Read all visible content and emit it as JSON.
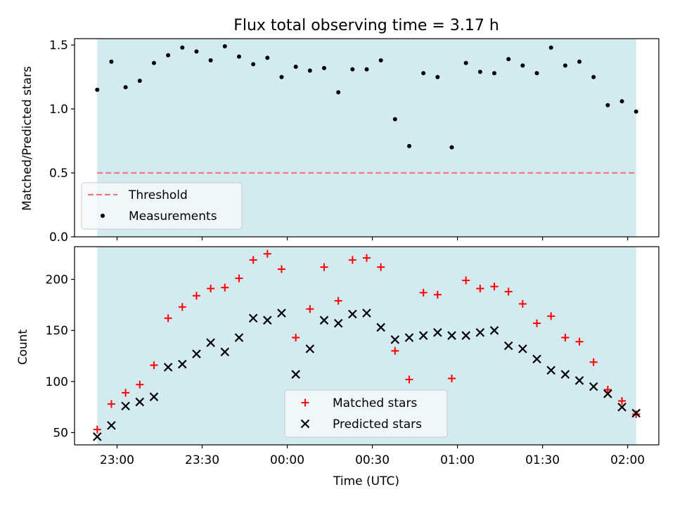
{
  "title": "Flux total observing time = 3.17 h",
  "colors": {
    "shade": "#d3eaf0",
    "threshold": "#ef7a7a",
    "measurement": "#000000",
    "matched": "#ff0000",
    "predicted": "#000000",
    "legend_bg": "#f4f9fb",
    "legend_border": "#cccccc"
  },
  "chart_data": [
    {
      "type": "scatter",
      "ylabel": "Matched/Predicted stars",
      "ylim": [
        0,
        1.55
      ],
      "yticks": [
        0,
        0.5,
        1.0,
        1.5
      ],
      "ytick_labels": [
        "0.0",
        "0.5",
        "1.0",
        "1.5"
      ],
      "threshold": 0.5,
      "legend": {
        "placement": "lower-left",
        "entries": [
          "Threshold",
          "Measurements"
        ]
      },
      "shaded_span": [
        "22:53",
        "02:03"
      ],
      "series": [
        {
          "name": "Measurements",
          "x": [
            "22:53",
            "22:58",
            "23:03",
            "23:08",
            "23:13",
            "23:18",
            "23:23",
            "23:28",
            "23:33",
            "23:38",
            "23:43",
            "23:48",
            "23:53",
            "23:58",
            "00:03",
            "00:08",
            "00:13",
            "00:18",
            "00:23",
            "00:28",
            "00:33",
            "00:38",
            "00:43",
            "00:48",
            "00:53",
            "00:58",
            "01:03",
            "01:08",
            "01:13",
            "01:18",
            "01:23",
            "01:28",
            "01:33",
            "01:38",
            "01:43",
            "01:48",
            "01:53",
            "01:58",
            "02:03"
          ],
          "values": [
            1.15,
            1.37,
            1.17,
            1.22,
            1.36,
            1.42,
            1.48,
            1.45,
            1.38,
            1.49,
            1.41,
            1.35,
            1.4,
            1.25,
            1.33,
            1.3,
            1.32,
            1.13,
            1.31,
            1.31,
            1.38,
            0.92,
            0.71,
            1.28,
            1.25,
            0.7,
            1.36,
            1.29,
            1.28,
            1.39,
            1.34,
            1.28,
            1.48,
            1.34,
            1.37,
            1.25,
            1.03,
            1.06,
            0.98
          ]
        }
      ]
    },
    {
      "type": "scatter",
      "xlabel": "Time (UTC)",
      "ylabel": "Count",
      "ylim": [
        38,
        232
      ],
      "yticks": [
        50,
        100,
        150,
        200
      ],
      "ytick_labels": [
        "50",
        "100",
        "150",
        "200"
      ],
      "xlim": [
        "22:45",
        "02:11"
      ],
      "xticks": [
        "23:00",
        "23:30",
        "00:00",
        "00:30",
        "01:00",
        "01:30",
        "02:00"
      ],
      "legend": {
        "placement": "lower-center",
        "entries": [
          "Matched stars",
          "Predicted stars"
        ]
      },
      "shaded_span": [
        "22:53",
        "02:03"
      ],
      "series": [
        {
          "name": "Matched stars",
          "x": [
            "22:53",
            "22:58",
            "23:03",
            "23:08",
            "23:13",
            "23:18",
            "23:23",
            "23:28",
            "23:33",
            "23:38",
            "23:43",
            "23:48",
            "23:53",
            "23:58",
            "00:03",
            "00:08",
            "00:13",
            "00:18",
            "00:23",
            "00:28",
            "00:33",
            "00:38",
            "00:43",
            "00:48",
            "00:53",
            "00:58",
            "01:03",
            "01:08",
            "01:13",
            "01:18",
            "01:23",
            "01:28",
            "01:33",
            "01:38",
            "01:43",
            "01:48",
            "01:53",
            "01:58",
            "02:03"
          ],
          "values": [
            53,
            78,
            89,
            97,
            116,
            162,
            173,
            184,
            191,
            192,
            201,
            219,
            225,
            210,
            143,
            171,
            212,
            179,
            219,
            221,
            212,
            130,
            102,
            187,
            185,
            103,
            199,
            191,
            193,
            188,
            176,
            157,
            164,
            143,
            139,
            119,
            92,
            81,
            68
          ]
        },
        {
          "name": "Predicted stars",
          "x": [
            "22:53",
            "22:58",
            "23:03",
            "23:08",
            "23:13",
            "23:18",
            "23:23",
            "23:28",
            "23:33",
            "23:38",
            "23:43",
            "23:48",
            "23:53",
            "23:58",
            "00:03",
            "00:08",
            "00:13",
            "00:18",
            "00:23",
            "00:28",
            "00:33",
            "00:38",
            "00:43",
            "00:48",
            "00:53",
            "00:58",
            "01:03",
            "01:08",
            "01:13",
            "01:18",
            "01:23",
            "01:28",
            "01:33",
            "01:38",
            "01:43",
            "01:48",
            "01:53",
            "01:58",
            "02:03"
          ],
          "values": [
            46,
            57,
            76,
            80,
            85,
            114,
            117,
            127,
            138,
            129,
            143,
            162,
            160,
            167,
            107,
            132,
            160,
            157,
            166,
            167,
            153,
            141,
            143,
            145,
            148,
            145,
            145,
            148,
            150,
            135,
            132,
            122,
            111,
            107,
            101,
            95,
            88,
            75,
            69
          ]
        }
      ]
    }
  ]
}
